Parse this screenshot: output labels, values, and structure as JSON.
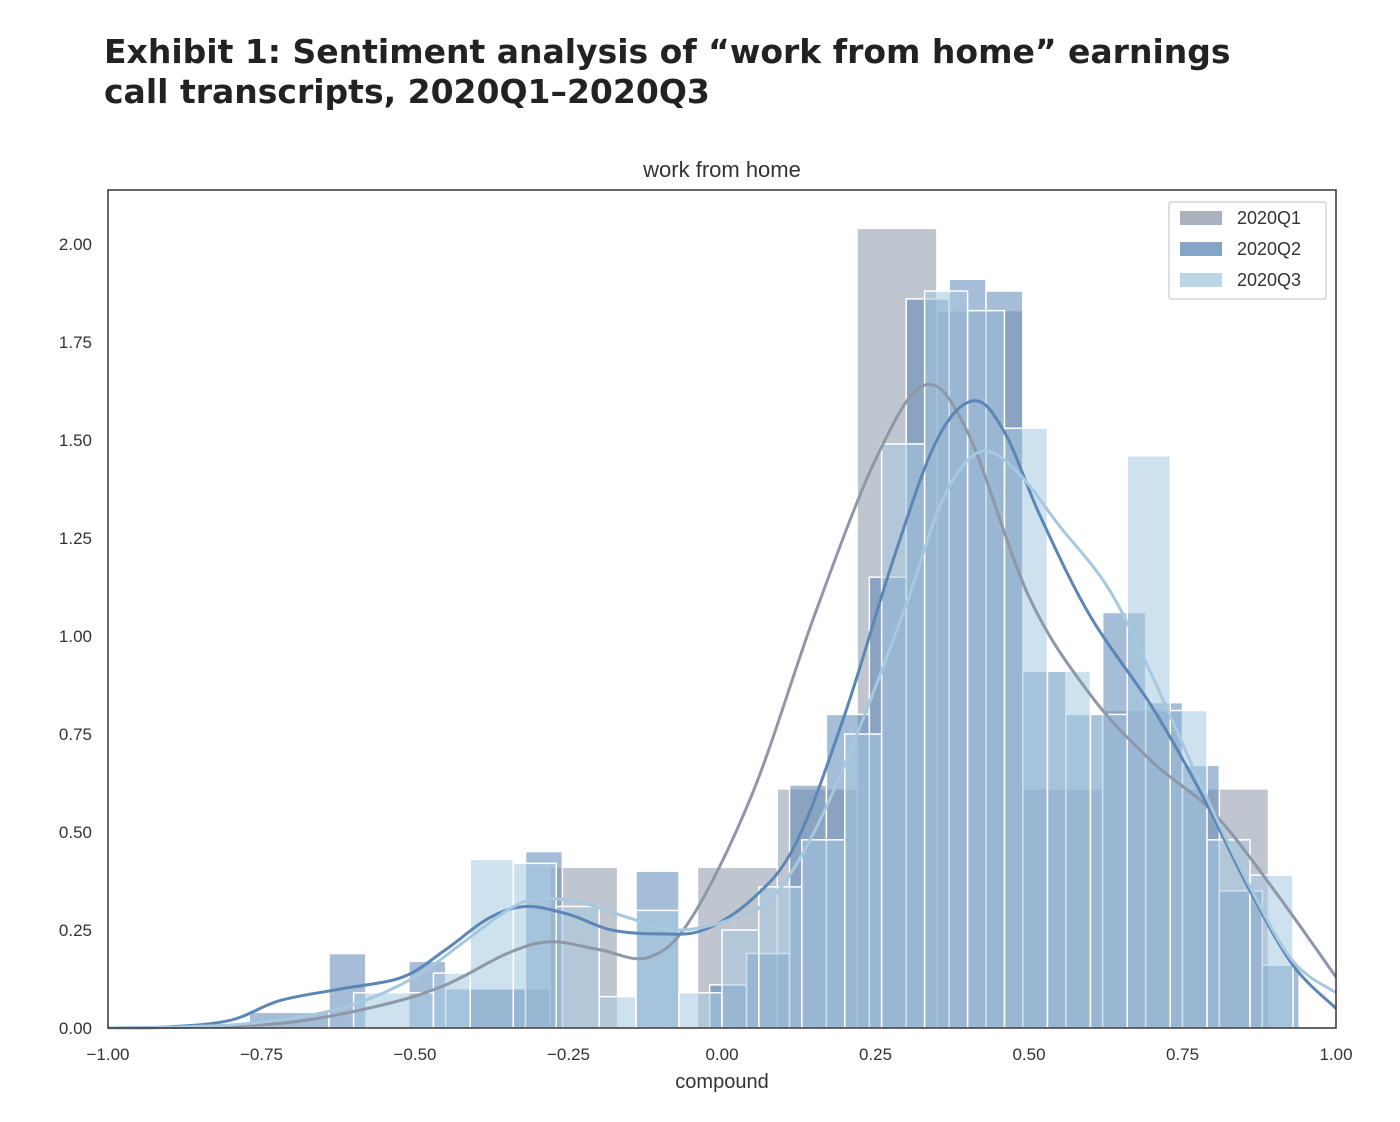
{
  "exhibit_title": "Exhibit 1: Sentiment analysis of “work from home” earnings call transcripts, 2020Q1–2020Q3",
  "chart_data": {
    "type": "histogram",
    "title": "work from home",
    "xlabel": "compound",
    "ylabel": "",
    "xlim": [
      -1.0,
      1.0
    ],
    "ylim": [
      0,
      2.2
    ],
    "x_ticks": [
      "−1.00",
      "−0.75",
      "−0.50",
      "−0.25",
      "0.00",
      "0.25",
      "0.50",
      "0.75",
      "1.00"
    ],
    "y_ticks": [
      "0.00",
      "0.25",
      "0.50",
      "0.75",
      "1.00",
      "1.25",
      "1.50",
      "1.75",
      "2.00"
    ],
    "grid": false,
    "legend_position": "top-right",
    "series": [
      {
        "name": "2020Q1",
        "color": "#8d98a8",
        "bins": [
          {
            "x0": -0.41,
            "x1": -0.28,
            "y": 0.1
          },
          {
            "x0": -0.28,
            "x1": -0.17,
            "y": 0.41
          },
          {
            "x0": -0.04,
            "x1": 0.09,
            "y": 0.41
          },
          {
            "x0": 0.09,
            "x1": 0.22,
            "y": 0.61
          },
          {
            "x0": 0.22,
            "x1": 0.35,
            "y": 2.04
          },
          {
            "x0": 0.35,
            "x1": 0.49,
            "y": 1.83
          },
          {
            "x0": 0.49,
            "x1": 0.62,
            "y": 0.61
          },
          {
            "x0": 0.62,
            "x1": 0.75,
            "y": 0.81
          },
          {
            "x0": 0.75,
            "x1": 0.89,
            "y": 0.61
          }
        ],
        "kde": [
          [
            -1.0,
            0.0
          ],
          [
            -0.85,
            0.003
          ],
          [
            -0.7,
            0.015
          ],
          [
            -0.55,
            0.06
          ],
          [
            -0.45,
            0.11
          ],
          [
            -0.35,
            0.19
          ],
          [
            -0.28,
            0.22
          ],
          [
            -0.2,
            0.2
          ],
          [
            -0.12,
            0.18
          ],
          [
            -0.05,
            0.28
          ],
          [
            0.05,
            0.6
          ],
          [
            0.15,
            1.05
          ],
          [
            0.25,
            1.45
          ],
          [
            0.33,
            1.64
          ],
          [
            0.4,
            1.52
          ],
          [
            0.5,
            1.1
          ],
          [
            0.6,
            0.85
          ],
          [
            0.7,
            0.68
          ],
          [
            0.8,
            0.55
          ],
          [
            0.9,
            0.35
          ],
          [
            1.0,
            0.13
          ]
        ]
      },
      {
        "name": "2020Q2",
        "color": "#5b86b5",
        "bins": [
          {
            "x0": -0.77,
            "x1": -0.64,
            "y": 0.04
          },
          {
            "x0": -0.64,
            "x1": -0.58,
            "y": 0.19
          },
          {
            "x0": -0.51,
            "x1": -0.45,
            "y": 0.17
          },
          {
            "x0": -0.45,
            "x1": -0.32,
            "y": 0.1
          },
          {
            "x0": -0.32,
            "x1": -0.26,
            "y": 0.45
          },
          {
            "x0": -0.14,
            "x1": -0.07,
            "y": 0.4
          },
          {
            "x0": -0.02,
            "x1": 0.04,
            "y": 0.11
          },
          {
            "x0": 0.04,
            "x1": 0.11,
            "y": 0.19
          },
          {
            "x0": 0.11,
            "x1": 0.17,
            "y": 0.62
          },
          {
            "x0": 0.17,
            "x1": 0.24,
            "y": 0.8
          },
          {
            "x0": 0.24,
            "x1": 0.3,
            "y": 1.15
          },
          {
            "x0": 0.3,
            "x1": 0.37,
            "y": 1.86
          },
          {
            "x0": 0.37,
            "x1": 0.43,
            "y": 1.91
          },
          {
            "x0": 0.43,
            "x1": 0.49,
            "y": 1.88
          },
          {
            "x0": 0.49,
            "x1": 0.56,
            "y": 0.91
          },
          {
            "x0": 0.56,
            "x1": 0.62,
            "y": 0.8
          },
          {
            "x0": 0.62,
            "x1": 0.69,
            "y": 1.06
          },
          {
            "x0": 0.69,
            "x1": 0.75,
            "y": 0.83
          },
          {
            "x0": 0.75,
            "x1": 0.81,
            "y": 0.67
          },
          {
            "x0": 0.81,
            "x1": 0.88,
            "y": 0.35
          },
          {
            "x0": 0.88,
            "x1": 0.94,
            "y": 0.16
          }
        ],
        "kde": [
          [
            -1.0,
            0.0
          ],
          [
            -0.9,
            0.003
          ],
          [
            -0.8,
            0.02
          ],
          [
            -0.72,
            0.07
          ],
          [
            -0.62,
            0.1
          ],
          [
            -0.52,
            0.13
          ],
          [
            -0.45,
            0.2
          ],
          [
            -0.38,
            0.28
          ],
          [
            -0.32,
            0.31
          ],
          [
            -0.25,
            0.29
          ],
          [
            -0.18,
            0.25
          ],
          [
            -0.1,
            0.24
          ],
          [
            -0.03,
            0.25
          ],
          [
            0.05,
            0.33
          ],
          [
            0.12,
            0.47
          ],
          [
            0.2,
            0.8
          ],
          [
            0.28,
            1.2
          ],
          [
            0.35,
            1.5
          ],
          [
            0.41,
            1.6
          ],
          [
            0.46,
            1.52
          ],
          [
            0.52,
            1.3
          ],
          [
            0.6,
            1.05
          ],
          [
            0.7,
            0.82
          ],
          [
            0.78,
            0.6
          ],
          [
            0.86,
            0.35
          ],
          [
            0.93,
            0.16
          ],
          [
            1.0,
            0.05
          ]
        ]
      },
      {
        "name": "2020Q3",
        "color": "#a6c8e0",
        "bins": [
          {
            "x0": -0.6,
            "x1": -0.47,
            "y": 0.09
          },
          {
            "x0": -0.47,
            "x1": -0.41,
            "y": 0.14
          },
          {
            "x0": -0.41,
            "x1": -0.34,
            "y": 0.43
          },
          {
            "x0": -0.34,
            "x1": -0.27,
            "y": 0.42
          },
          {
            "x0": -0.27,
            "x1": -0.2,
            "y": 0.31
          },
          {
            "x0": -0.2,
            "x1": -0.14,
            "y": 0.08
          },
          {
            "x0": -0.14,
            "x1": -0.07,
            "y": 0.3
          },
          {
            "x0": -0.07,
            "x1": 0.0,
            "y": 0.09
          },
          {
            "x0": 0.0,
            "x1": 0.06,
            "y": 0.25
          },
          {
            "x0": 0.06,
            "x1": 0.13,
            "y": 0.36
          },
          {
            "x0": 0.13,
            "x1": 0.2,
            "y": 0.48
          },
          {
            "x0": 0.2,
            "x1": 0.26,
            "y": 0.75
          },
          {
            "x0": 0.26,
            "x1": 0.33,
            "y": 1.49
          },
          {
            "x0": 0.33,
            "x1": 0.4,
            "y": 1.88
          },
          {
            "x0": 0.4,
            "x1": 0.46,
            "y": 1.83
          },
          {
            "x0": 0.46,
            "x1": 0.53,
            "y": 1.53
          },
          {
            "x0": 0.53,
            "x1": 0.6,
            "y": 0.91
          },
          {
            "x0": 0.6,
            "x1": 0.66,
            "y": 0.8
          },
          {
            "x0": 0.66,
            "x1": 0.73,
            "y": 1.46
          },
          {
            "x0": 0.73,
            "x1": 0.79,
            "y": 0.81
          },
          {
            "x0": 0.79,
            "x1": 0.86,
            "y": 0.48
          },
          {
            "x0": 0.86,
            "x1": 0.93,
            "y": 0.39
          }
        ],
        "kde": [
          [
            -1.0,
            0.0
          ],
          [
            -0.9,
            0.002
          ],
          [
            -0.8,
            0.008
          ],
          [
            -0.7,
            0.025
          ],
          [
            -0.6,
            0.06
          ],
          [
            -0.5,
            0.13
          ],
          [
            -0.42,
            0.22
          ],
          [
            -0.35,
            0.3
          ],
          [
            -0.3,
            0.33
          ],
          [
            -0.23,
            0.32
          ],
          [
            -0.15,
            0.28
          ],
          [
            -0.08,
            0.25
          ],
          [
            0.0,
            0.27
          ],
          [
            0.08,
            0.33
          ],
          [
            0.15,
            0.5
          ],
          [
            0.22,
            0.75
          ],
          [
            0.3,
            1.08
          ],
          [
            0.36,
            1.35
          ],
          [
            0.42,
            1.47
          ],
          [
            0.48,
            1.42
          ],
          [
            0.55,
            1.28
          ],
          [
            0.63,
            1.12
          ],
          [
            0.7,
            0.9
          ],
          [
            0.78,
            0.62
          ],
          [
            0.86,
            0.36
          ],
          [
            0.93,
            0.17
          ],
          [
            1.0,
            0.09
          ]
        ]
      }
    ]
  }
}
